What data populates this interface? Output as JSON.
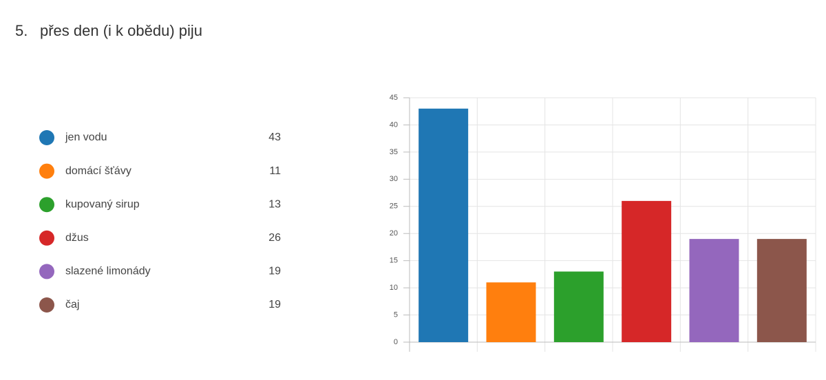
{
  "chart_data": {
    "type": "bar",
    "title_number": "5.",
    "title": "přes den (i k obědu) piju",
    "categories": [
      "jen vodu",
      "domácí šťávy",
      "kupovaný sirup",
      "džus",
      "slazené limonády",
      "čaj"
    ],
    "values": [
      43,
      11,
      13,
      26,
      19,
      19
    ],
    "colors": [
      "#1f77b4",
      "#ff7f0e",
      "#2ca02c",
      "#d62728",
      "#9467bd",
      "#8c564b"
    ],
    "ylim": [
      0,
      45
    ],
    "yticks": [
      0,
      5,
      10,
      15,
      20,
      25,
      30,
      35,
      40,
      45
    ],
    "grid": true
  }
}
